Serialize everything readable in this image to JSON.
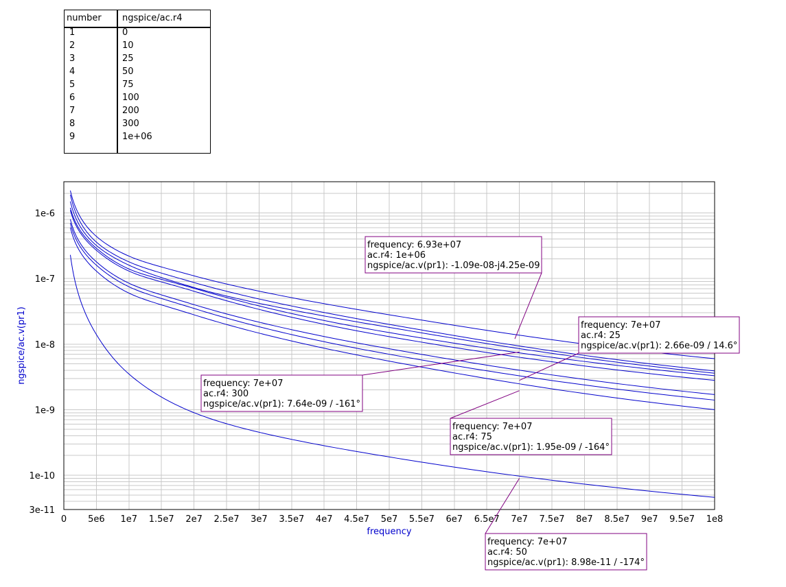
{
  "table": {
    "headers": [
      "number",
      "ngspice/ac.r4"
    ],
    "rows": [
      [
        "1",
        "0"
      ],
      [
        "2",
        "10"
      ],
      [
        "3",
        "25"
      ],
      [
        "4",
        "50"
      ],
      [
        "5",
        "75"
      ],
      [
        "6",
        "100"
      ],
      [
        "7",
        "200"
      ],
      [
        "8",
        "300"
      ],
      [
        "9",
        "1e+06"
      ]
    ]
  },
  "chart_data": {
    "type": "line",
    "title": "",
    "xlabel": "frequency",
    "ylabel": "ngspice/ac.v(pr1)",
    "xlim": [
      0,
      100000000
    ],
    "ylim": [
      3e-11,
      3e-06
    ],
    "yscale": "log",
    "grid": true,
    "x_ticks": [
      "0",
      "5e6",
      "1e7",
      "1.5e7",
      "2e7",
      "2.5e7",
      "3e7",
      "3.5e7",
      "4e7",
      "4.5e7",
      "5e7",
      "5.5e7",
      "6e7",
      "6.5e7",
      "7e7",
      "7.5e7",
      "8e7",
      "8.5e7",
      "9e7",
      "9.5e7",
      "1e8"
    ],
    "y_ticks": [
      "1e-6",
      "1e-7",
      "1e-8",
      "1e-9",
      "1e-10",
      "3e-11"
    ],
    "line_color": "#0000cc",
    "series": [
      {
        "x": [
          1000000,
          5000000,
          10000000,
          20000000,
          50000000,
          100000000
        ],
        "values": [
          2.2e-06,
          4.4e-07,
          2.2e-07,
          1.1e-07,
          2.8e-08,
          6e-09
        ]
      },
      {
        "x": [
          1000000,
          5000000,
          10000000,
          20000000,
          50000000,
          100000000
        ],
        "values": [
          1.9e-06,
          3.6e-07,
          1.8e-07,
          8.7e-08,
          2e-08,
          3.9e-09
        ]
      },
      {
        "x": [
          1000000,
          5000000,
          10000000,
          20000000,
          50000000,
          100000000
        ],
        "values": [
          1.5e-06,
          3.2e-07,
          1.6e-07,
          7.3e-08,
          1.8e-08,
          3.6e-09
        ]
      },
      {
        "x": [
          1000000,
          5000000,
          10000000,
          20000000,
          50000000,
          100000000
        ],
        "values": [
          1.2e-06,
          2.9e-07,
          1.4e-07,
          7.1e-08,
          1.5e-08,
          3.3e-09
        ]
      },
      {
        "x": [
          1000000,
          5000000,
          10000000,
          20000000,
          50000000,
          100000000
        ],
        "values": [
          1.1e-06,
          2.7e-07,
          1.3e-07,
          6.4e-08,
          1.3e-08,
          2.8e-09
        ]
      },
      {
        "x": [
          1000000,
          5000000,
          10000000,
          20000000,
          50000000,
          100000000
        ],
        "values": [
          8e-07,
          1.8e-07,
          8.5e-08,
          4e-08,
          8.5e-09,
          1.7e-09
        ]
      },
      {
        "x": [
          1000000,
          5000000,
          10000000,
          20000000,
          50000000,
          100000000
        ],
        "values": [
          7e-07,
          1.6e-07,
          7.5e-08,
          3.5e-08,
          7e-09,
          1.4e-09
        ]
      },
      {
        "x": [
          1000000,
          5000000,
          10000000,
          20000000,
          50000000,
          100000000
        ],
        "values": [
          6e-07,
          1.3e-07,
          6e-08,
          2.8e-08,
          5.5e-09,
          1e-09
        ]
      },
      {
        "x": [
          1000000,
          5000000,
          10000000,
          20000000,
          50000000,
          100000000
        ],
        "values": [
          2.3e-07,
          1.4e-08,
          3.5e-09,
          9e-10,
          1.9e-10,
          4.6e-11
        ]
      }
    ],
    "annotations": [
      {
        "lines": [
          "frequency: 6.93e+07",
          "ac.r4: 1e+06",
          "ngspice/ac.v(pr1): -1.09e-08-j4.25e-09"
        ],
        "x": 69300000,
        "y": 1.2e-08
      },
      {
        "lines": [
          "frequency: 7e+07",
          "ac.r4: 25",
          "ngspice/ac.v(pr1): 2.66e-09 / 14.6°"
        ],
        "x": 70000000,
        "y": 2.8e-09
      },
      {
        "lines": [
          "frequency: 7e+07",
          "ac.r4: 300",
          "ngspice/ac.v(pr1): 7.64e-09 / -161°"
        ],
        "x": 70000000,
        "y": 7.6e-09
      },
      {
        "lines": [
          "frequency: 7e+07",
          "ac.r4: 75",
          "ngspice/ac.v(pr1): 1.95e-09 / -164°"
        ],
        "x": 70000000,
        "y": 1.95e-09
      },
      {
        "lines": [
          "frequency: 7e+07",
          "ac.r4: 50",
          "ngspice/ac.v(pr1): 8.98e-11 / -174°"
        ],
        "x": 70000000,
        "y": 8.98e-11
      }
    ],
    "annotation_color": "#800080"
  }
}
